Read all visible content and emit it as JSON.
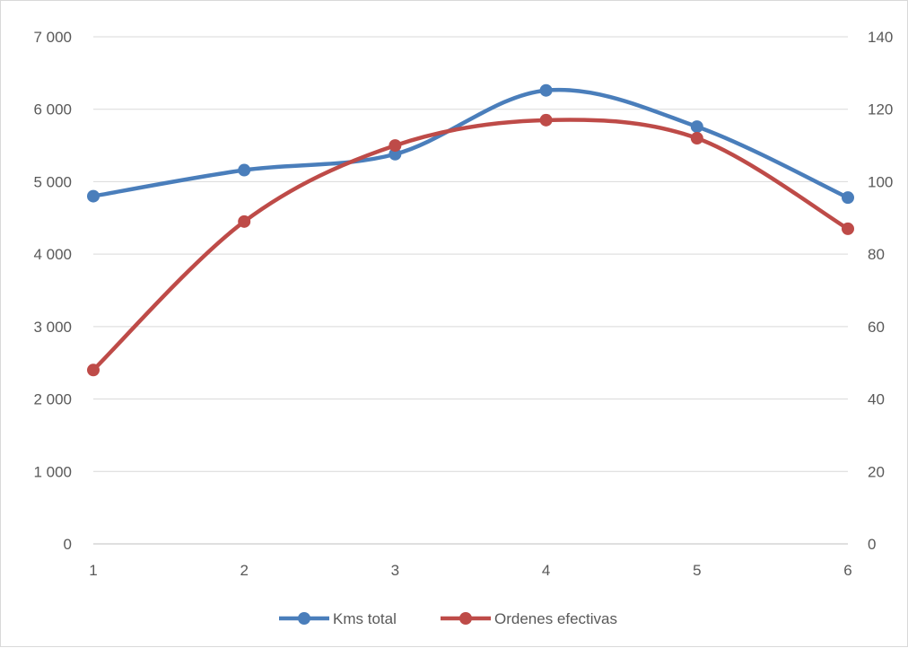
{
  "chart_data": {
    "type": "line",
    "smooth": true,
    "title": "",
    "x": [
      1,
      2,
      3,
      4,
      5,
      6
    ],
    "x_tick_labels": [
      "1",
      "2",
      "3",
      "4",
      "5",
      "6"
    ],
    "y_left": {
      "min": 0,
      "max": 7000,
      "step": 1000,
      "tick_labels": [
        "0",
        "1 000",
        "2 000",
        "3 000",
        "4 000",
        "5 000",
        "6 000",
        "7 000"
      ]
    },
    "y_right": {
      "min": 0,
      "max": 140,
      "step": 20,
      "tick_labels": [
        "0",
        "20",
        "40",
        "60",
        "80",
        "100",
        "120",
        "140"
      ]
    },
    "grid": true,
    "legend_position": "bottom",
    "series": [
      {
        "name": "Kms total",
        "axis": "left",
        "color": "#4a7ebb",
        "values": [
          4800,
          5160,
          5380,
          6260,
          5760,
          4780
        ]
      },
      {
        "name": "Ordenes efectivas",
        "axis": "right",
        "color": "#be4b48",
        "values": [
          48,
          89,
          110,
          117,
          112,
          87
        ]
      }
    ]
  }
}
